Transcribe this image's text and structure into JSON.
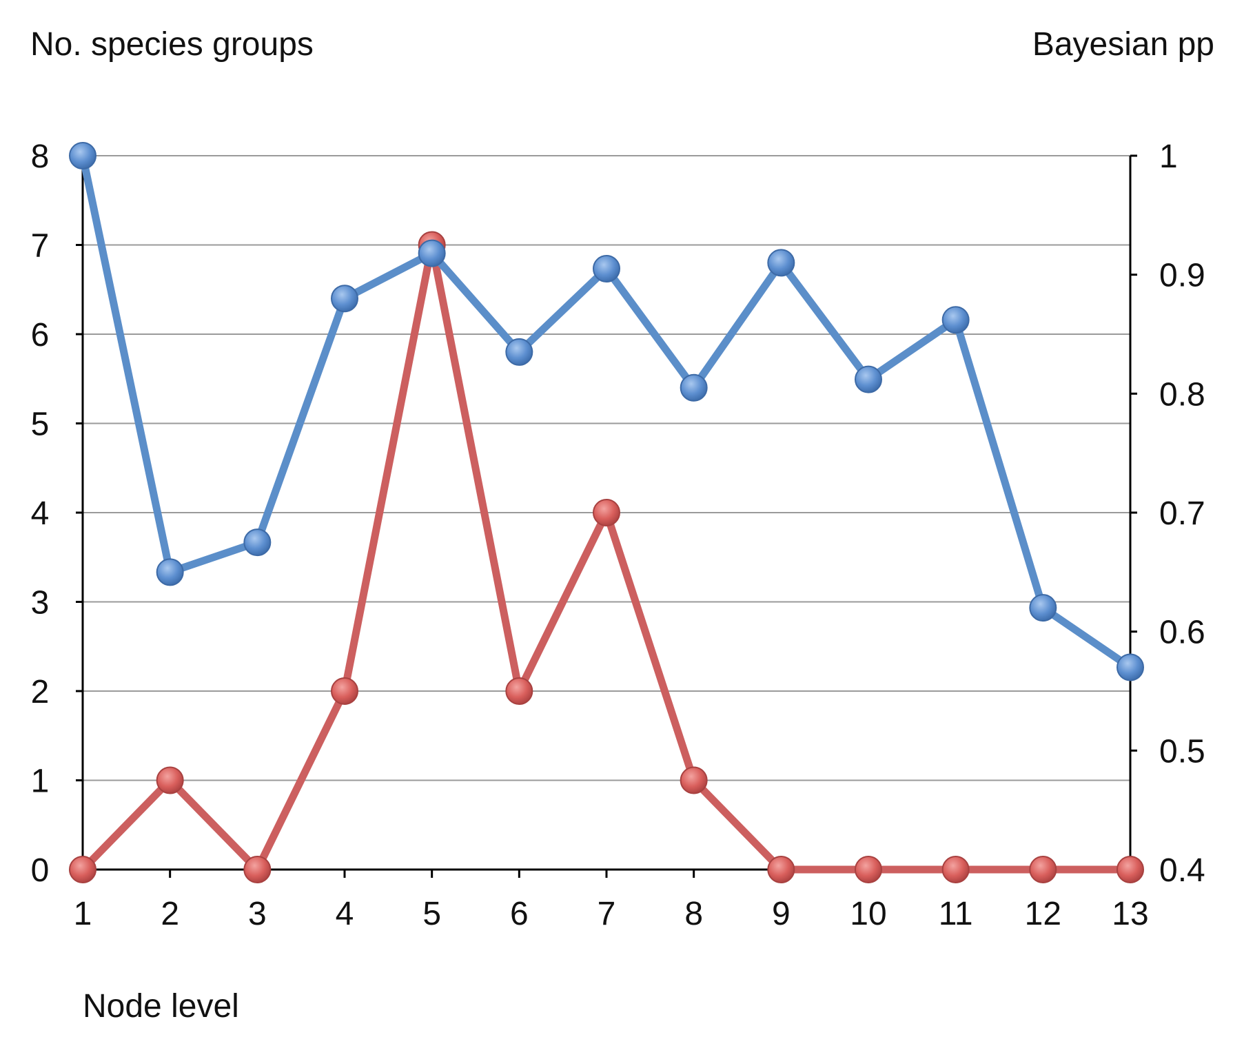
{
  "chart_data": {
    "type": "line",
    "left_axis_label": "No. species groups",
    "right_axis_label": "Bayesian pp",
    "xlabel": "Node level",
    "categories": [
      "1",
      "2",
      "3",
      "4",
      "5",
      "6",
      "7",
      "8",
      "9",
      "10",
      "11",
      "12",
      "13"
    ],
    "y_left": {
      "min": 0,
      "max": 8,
      "ticks": [
        "0",
        "1",
        "2",
        "3",
        "4",
        "5",
        "6",
        "7",
        "8"
      ]
    },
    "y_right": {
      "min": 0.4,
      "max": 1.0,
      "ticks": [
        "0.4",
        "0.5",
        "0.6",
        "0.7",
        "0.8",
        "0.9",
        "1"
      ]
    },
    "grid": true,
    "series": [
      {
        "axis": "right",
        "color": "#5b8ec9",
        "values": [
          1.0,
          0.65,
          0.675,
          0.88,
          0.918,
          0.835,
          0.905,
          0.805,
          0.91,
          0.812,
          0.862,
          0.62,
          0.57
        ]
      },
      {
        "axis": "left",
        "color": "#cc5f5f",
        "values": [
          0,
          1,
          0,
          2,
          7,
          2,
          4,
          1,
          0,
          0,
          0,
          0,
          0
        ]
      }
    ]
  }
}
